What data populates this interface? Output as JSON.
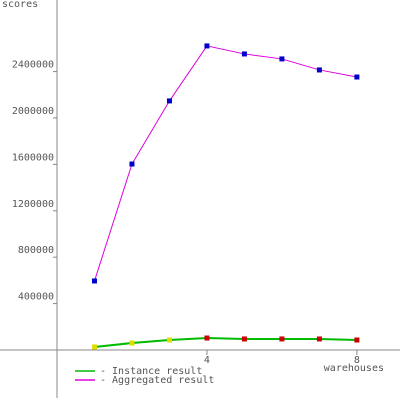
{
  "chart_data": {
    "type": "line",
    "y_label": "scores",
    "x_label": "warehouses",
    "x": [
      1,
      2,
      3,
      4,
      5,
      6,
      7,
      8
    ],
    "xlim": [
      0,
      9.15
    ],
    "xticks": [
      4,
      8
    ],
    "ylim": [
      -414000,
      3017000
    ],
    "yticks": [
      400000,
      800000,
      1200000,
      1600000,
      2000000,
      2400000
    ],
    "series": [
      {
        "name": "- Instance result",
        "color": "#00bb00",
        "marker_colors": [
          "#dddd00",
          "#dddd00",
          "#dddd00",
          "#cc0000",
          "#cc0000",
          "#cc0000",
          "#cc0000",
          "#cc0000"
        ],
        "values": [
          26000,
          60000,
          86000,
          103000,
          95000,
          95000,
          95000,
          86000
        ]
      },
      {
        "name": "- Aggregated result",
        "color": "#dd00dd",
        "marker_colors": [
          "#0000cc",
          "#0000cc",
          "#0000cc",
          "#0000cc",
          "#0000cc",
          "#0000cc",
          "#0000cc",
          "#0000cc"
        ],
        "values": [
          595000,
          1603000,
          2147000,
          2621000,
          2552000,
          2509000,
          2414000,
          2353000
        ]
      }
    ]
  }
}
